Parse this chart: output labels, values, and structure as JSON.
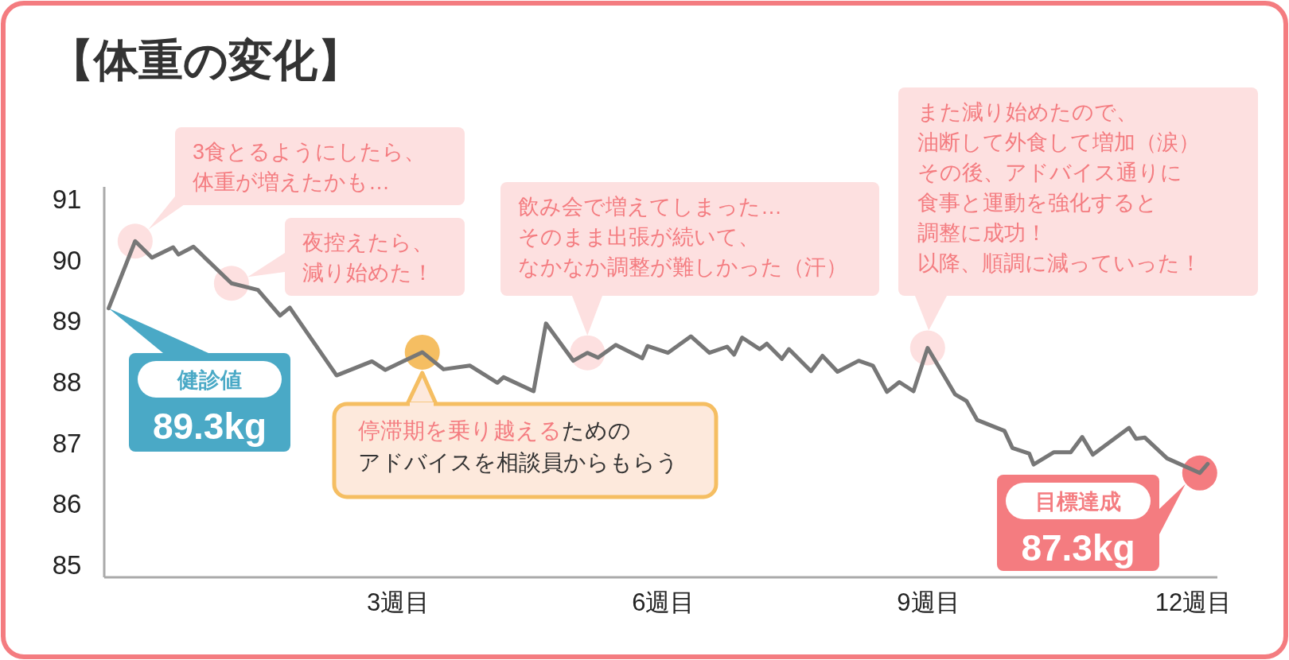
{
  "chart_data": {
    "type": "line",
    "title": "【体重の変化】",
    "x": [
      -0.28,
      0.02,
      0.21,
      0.45,
      0.51,
      0.68,
      1.11,
      1.41,
      1.66,
      1.77,
      2.3,
      2.7,
      2.85,
      3.27,
      3.51,
      3.81,
      4.12,
      4.19,
      4.53,
      4.67,
      4.98,
      5.14,
      5.26,
      5.46,
      5.76,
      5.82,
      6.05,
      6.31,
      6.52,
      6.72,
      6.8,
      6.89,
      7.09,
      7.17,
      7.34,
      7.42,
      7.67,
      7.8,
      7.97,
      8.21,
      8.37,
      8.53,
      8.67,
      8.83,
      8.99,
      9.3,
      9.43,
      9.55,
      9.86,
      9.95,
      10.14,
      10.19,
      10.42,
      10.61,
      10.74,
      10.86,
      11.27,
      11.35,
      11.45,
      11.7,
      12.07,
      12.16
    ],
    "series": [
      {
        "color": "#777777",
        "values": [
          89.21,
          90.31,
          90.04,
          90.21,
          90.09,
          90.22,
          89.62,
          89.51,
          89.09,
          89.22,
          88.11,
          88.34,
          88.2,
          88.49,
          88.21,
          88.27,
          87.99,
          88.08,
          87.85,
          88.96,
          88.35,
          88.48,
          88.4,
          88.61,
          88.39,
          88.59,
          88.48,
          88.75,
          88.48,
          88.58,
          88.45,
          88.73,
          88.54,
          88.63,
          88.38,
          88.54,
          88.18,
          88.43,
          88.17,
          88.35,
          88.27,
          87.84,
          88.0,
          87.85,
          88.56,
          87.8,
          87.69,
          87.38,
          87.2,
          86.92,
          86.83,
          86.65,
          86.85,
          86.85,
          87.1,
          86.81,
          87.25,
          87.07,
          87.09,
          86.75,
          86.51,
          86.66
        ]
      }
    ],
    "xlim": [
      -0.33,
      12.27
    ],
    "ylim": [
      84.8,
      91.2
    ],
    "xticks": [
      {
        "value": 3,
        "label": "3週目"
      },
      {
        "value": 6,
        "label": "6週目"
      },
      {
        "value": 9,
        "label": "9週目"
      },
      {
        "value": 12,
        "label": "12週目"
      }
    ],
    "yticks": [
      85,
      86,
      87,
      88,
      89,
      90,
      91
    ],
    "annotations": [
      "3食とるようにしたら、体重が増えたかも…",
      "夜控えたら、減り始めた！",
      "健診値\n89.3kg",
      "停滞期を乗り越えるためのアドバイスを相談員からもらう",
      "飲み会で増えてしまった…そのまま出張が続いて、なかなか調整が難しかった（汗）",
      "また減り始めたので、油断して外食して増加（涙）その後、アドバイス通りに食事と運動を強化すると調整に成功！以降、順調に減っていった！",
      "目標達成\n87.3kg"
    ]
  }
}
